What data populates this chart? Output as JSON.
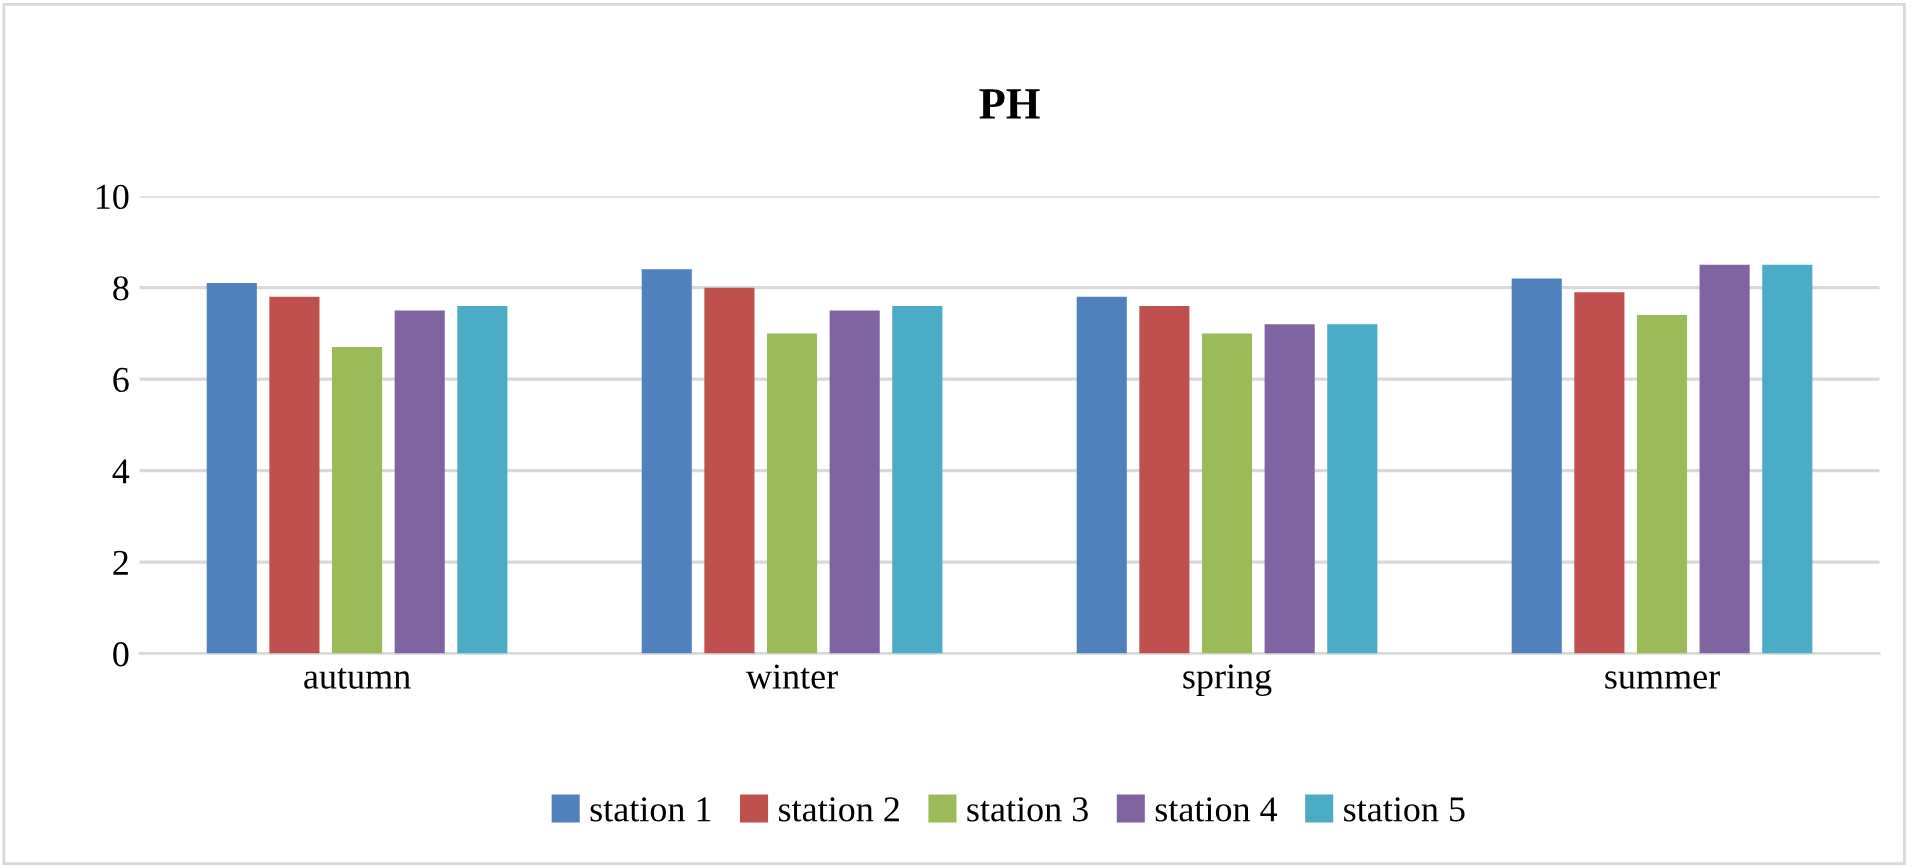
{
  "chart_data": {
    "type": "bar",
    "title": "PH",
    "categories": [
      "autumn",
      "winter",
      "spring",
      "summer"
    ],
    "series": [
      {
        "name": "station 1",
        "color": "#4f81bd",
        "values": [
          8.1,
          8.4,
          7.8,
          8.2
        ]
      },
      {
        "name": "station 2",
        "color": "#c0504d",
        "values": [
          7.8,
          8.0,
          7.6,
          7.9
        ]
      },
      {
        "name": "station 3",
        "color": "#9bbb59",
        "values": [
          6.7,
          7.0,
          7.0,
          7.4
        ]
      },
      {
        "name": "station 4",
        "color": "#8064a2",
        "values": [
          7.5,
          7.5,
          7.2,
          8.5
        ]
      },
      {
        "name": "station 5",
        "color": "#4bacc6",
        "values": [
          7.6,
          7.6,
          7.2,
          8.5
        ]
      }
    ],
    "ylim": [
      0,
      10
    ],
    "yticks": [
      0,
      2,
      4,
      6,
      8,
      10
    ],
    "grid": "y",
    "legend": "bottom"
  }
}
